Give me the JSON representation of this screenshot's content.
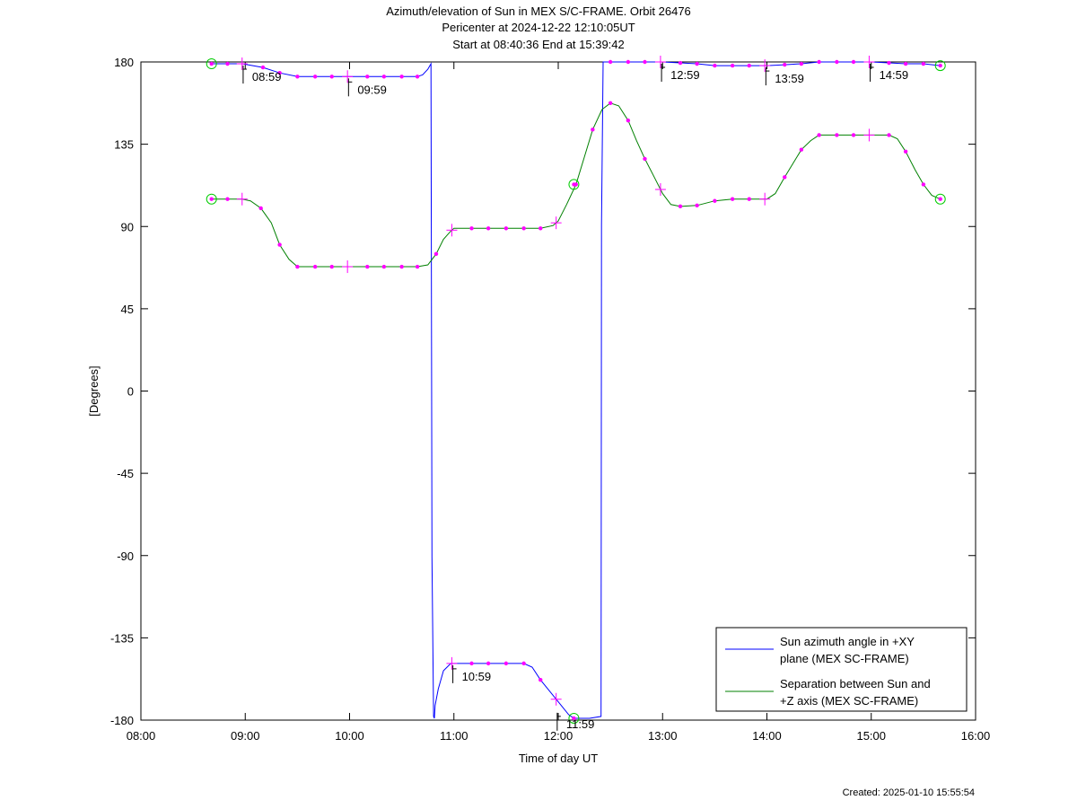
{
  "chart_data": {
    "type": "line",
    "title": "Azimuth/elevation of Sun in MEX S/C-FRAME.  Orbit 26476",
    "subtitle_lines": [
      "Pericenter at 2024-12-22 12:10:05UT",
      "Start at 08:40:36 End at 15:39:42"
    ],
    "xlabel": "Time of day UT",
    "ylabel": "[Degrees]",
    "xlim": [
      8.0,
      16.0
    ],
    "ylim": [
      -180,
      180
    ],
    "x_ticks": [
      8,
      9,
      10,
      11,
      12,
      13,
      14,
      15,
      16
    ],
    "x_tick_labels": [
      "08:00",
      "09:00",
      "10:00",
      "11:00",
      "12:00",
      "13:00",
      "14:00",
      "15:00",
      "16:00"
    ],
    "y_ticks": [
      180,
      135,
      90,
      45,
      0,
      -45,
      -90,
      -135,
      -180
    ],
    "y_tick_labels": [
      "180",
      "135",
      "90",
      "45",
      "0",
      "-45",
      "-90",
      "-135",
      "-180"
    ],
    "grid": false,
    "legend_position": "bottom-right",
    "series": [
      {
        "name": "Sun azimuth angle in +XY plane (MEX SC-FRAME)",
        "legend_lines": [
          "Sun azimuth angle in +XY",
          "plane (MEX SC-FRAME)"
        ],
        "color": "#0000ff",
        "x": [
          8.677,
          8.83,
          8.97,
          9.17,
          9.33,
          9.5,
          9.67,
          9.83,
          10.0,
          10.17,
          10.33,
          10.5,
          10.65,
          10.7,
          10.75,
          10.78,
          10.79,
          10.805,
          10.813,
          10.82,
          10.85,
          10.9,
          10.97,
          11.0,
          11.17,
          11.33,
          11.5,
          11.67,
          11.75,
          11.83,
          12.0,
          12.1,
          12.15,
          12.3,
          12.41,
          12.415,
          12.43,
          12.5,
          12.67,
          12.83,
          13.0,
          13.17,
          13.33,
          13.5,
          13.67,
          13.83,
          14.0,
          14.17,
          14.33,
          14.5,
          14.67,
          14.83,
          15.0,
          15.17,
          15.33,
          15.5,
          15.662
        ],
        "y": [
          179,
          179,
          179,
          177,
          174,
          172,
          172,
          172,
          172,
          172,
          172,
          172,
          172,
          173,
          176,
          179,
          -91,
          -178,
          -179,
          -172,
          -163,
          -153,
          -149,
          -149,
          -149,
          -149,
          -149,
          -149,
          -151,
          -158,
          -170,
          -177,
          -179,
          -179,
          -178,
          91,
          180,
          180,
          180,
          180,
          180,
          179.5,
          179,
          178,
          178,
          178,
          178,
          178.5,
          179,
          180,
          180,
          180,
          180,
          179.5,
          179,
          179,
          178
        ]
      },
      {
        "name": "Separation between Sun and +Z axis (MEX SC-FRAME)",
        "legend_lines": [
          "Separation between Sun and",
          "+Z axis (MEX SC-FRAME)"
        ],
        "color": "#008000",
        "x": [
          8.677,
          8.83,
          8.97,
          9.05,
          9.15,
          9.25,
          9.33,
          9.42,
          9.5,
          9.67,
          9.83,
          10.0,
          10.17,
          10.33,
          10.5,
          10.65,
          10.75,
          10.83,
          10.9,
          10.97,
          11.0,
          11.17,
          11.33,
          11.5,
          11.67,
          11.83,
          11.95,
          12.0,
          12.08,
          12.17,
          12.25,
          12.33,
          12.42,
          12.5,
          12.58,
          12.67,
          12.75,
          12.83,
          12.92,
          13.0,
          13.08,
          13.17,
          13.33,
          13.5,
          13.67,
          13.83,
          14.0,
          14.08,
          14.17,
          14.33,
          14.42,
          14.5,
          14.67,
          14.83,
          15.0,
          15.17,
          15.25,
          15.33,
          15.42,
          15.5,
          15.58,
          15.662
        ],
        "y": [
          105,
          105,
          105,
          104,
          100,
          92,
          80,
          72,
          68,
          68,
          68,
          68,
          68,
          68,
          68,
          68,
          69,
          75,
          83,
          87.5,
          89,
          89,
          89,
          89,
          89,
          89,
          90.5,
          93,
          102,
          113,
          128,
          143,
          154,
          157.5,
          156,
          148,
          137,
          127,
          117,
          108,
          102,
          101,
          101.5,
          104,
          105,
          105,
          105,
          108,
          117,
          132,
          137,
          140,
          140,
          140,
          140,
          140,
          138,
          131,
          121,
          113,
          107,
          105
        ]
      }
    ],
    "markers": {
      "color": "#ff00ff",
      "endpoint_color": "#00cc00",
      "azimuth_dots_x": [
        8.83,
        9.17,
        9.33,
        9.5,
        9.67,
        9.83,
        10.17,
        10.33,
        10.5,
        10.65,
        11.17,
        11.33,
        11.5,
        11.67,
        11.83,
        12.5,
        12.67,
        12.83,
        13.17,
        13.33,
        13.5,
        13.67,
        13.83,
        14.17,
        14.33,
        14.5,
        14.67,
        14.83,
        15.17,
        15.33,
        15.5
      ],
      "separation_dots_x": [
        8.83,
        9.15,
        9.33,
        9.5,
        9.67,
        9.83,
        10.17,
        10.33,
        10.5,
        10.65,
        10.83,
        11.17,
        11.33,
        11.5,
        11.67,
        11.83,
        12.17,
        12.33,
        12.5,
        12.67,
        12.83,
        13.17,
        13.33,
        13.5,
        13.67,
        13.83,
        14.17,
        14.33,
        14.5,
        14.67,
        14.83,
        15.17,
        15.33,
        15.5
      ],
      "hour_crosses_x": [
        8.97,
        9.98,
        10.98,
        11.98,
        12.98,
        13.98,
        14.98
      ],
      "endpoints_x": [
        8.677,
        12.15,
        15.662
      ],
      "endpoint_values": {
        "azimuth": [
          179,
          -179,
          178
        ],
        "separation": [
          105,
          113,
          105
        ]
      }
    },
    "annotations": [
      {
        "text": "08:59",
        "x": 8.98,
        "y": 179
      },
      {
        "text": "09:59",
        "x": 9.99,
        "y": 172
      },
      {
        "text": "10:59",
        "x": 10.99,
        "y": -149
      },
      {
        "text": "11:59",
        "x": 11.99,
        "y": -175
      },
      {
        "text": "12:59",
        "x": 12.99,
        "y": 180
      },
      {
        "text": "13:59",
        "x": 13.99,
        "y": 178
      },
      {
        "text": "14:59",
        "x": 14.99,
        "y": 180
      }
    ]
  },
  "footer": {
    "created": "Created: 2025-01-10 15:55:54"
  }
}
